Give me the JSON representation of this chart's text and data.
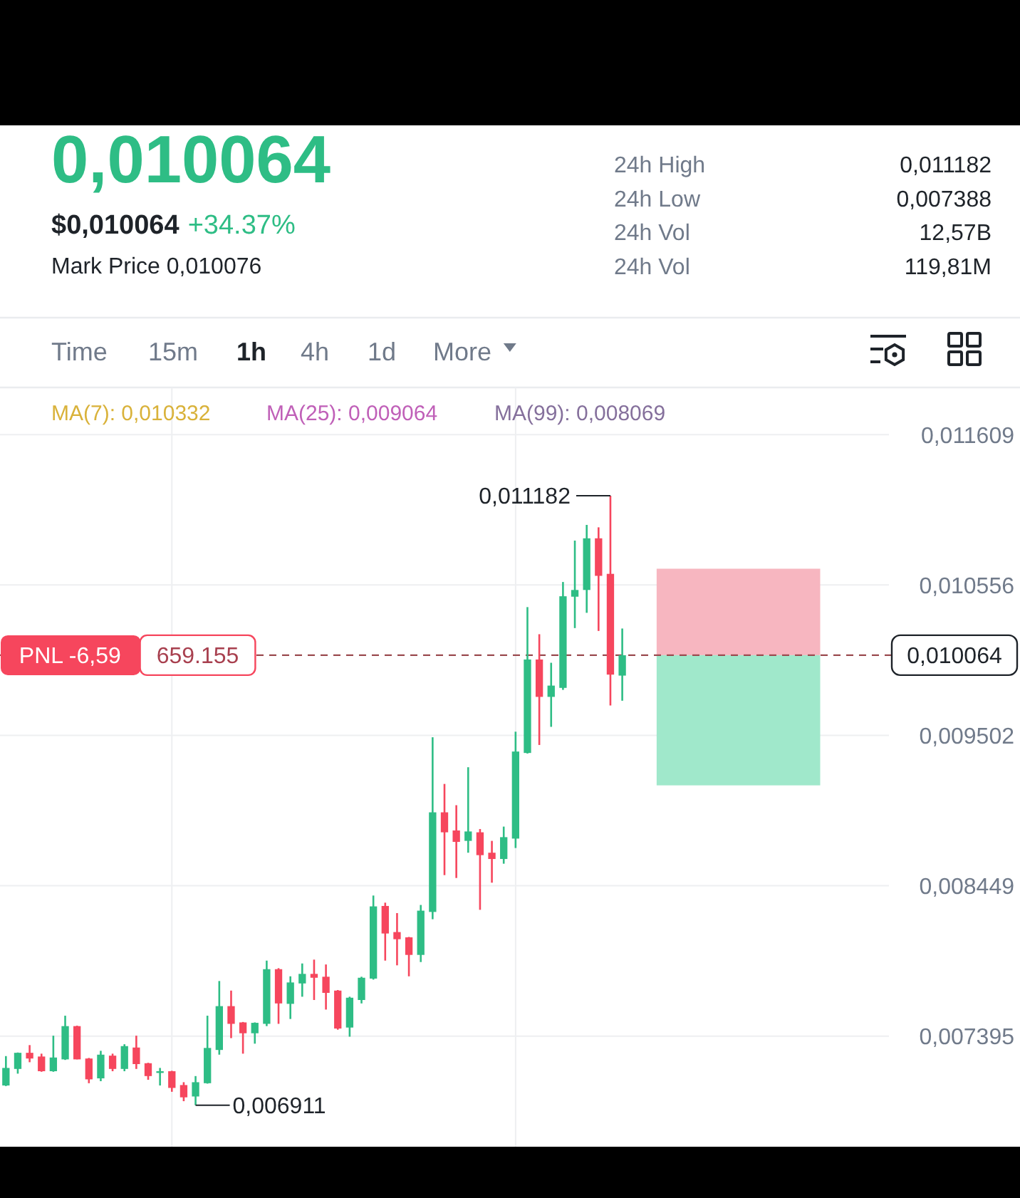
{
  "chart_data": {
    "type": "candlestick",
    "title": "0,010064",
    "subtitle": "$0,010064 +34.37%",
    "categories": [
      null,
      null,
      null,
      null,
      null,
      null,
      null,
      null,
      null,
      null,
      null,
      null,
      null,
      null,
      null,
      null,
      null,
      null,
      null,
      null,
      null,
      null,
      null,
      null,
      null,
      null,
      null,
      null,
      null,
      null,
      null,
      null,
      null,
      null,
      null,
      null,
      null,
      null,
      null,
      null,
      null,
      null,
      null,
      null,
      null,
      null,
      null,
      null,
      null,
      null,
      null,
      null,
      null,
      null,
      null,
      null,
      null,
      null,
      null,
      null,
      null,
      null,
      null,
      null,
      null,
      null,
      null,
      null,
      null,
      null,
      null,
      null,
      null,
      null,
      null
    ],
    "ohlc": [
      [
        0.007049,
        0.007255,
        0.007045,
        0.007172
      ],
      [
        0.007165,
        0.00728,
        0.007132,
        0.007278
      ],
      [
        0.007278,
        0.007332,
        0.007212,
        0.007238
      ],
      [
        0.007252,
        0.007272,
        0.007145,
        0.007149
      ],
      [
        0.007149,
        0.007398,
        0.007145,
        0.007245
      ],
      [
        0.007232,
        0.007538,
        0.007228,
        0.007465
      ],
      [
        0.007465,
        0.007468,
        0.007232,
        0.007232
      ],
      [
        0.007238,
        0.007242,
        0.007065,
        0.007092
      ],
      [
        0.007099,
        0.007292,
        0.007079,
        0.007265
      ],
      [
        0.007258,
        0.007272,
        0.007149,
        0.007165
      ],
      [
        0.007165,
        0.007338,
        0.007149,
        0.007325
      ],
      [
        0.007315,
        0.007398,
        0.007165,
        0.007199
      ],
      [
        0.007205,
        0.007208,
        0.007089,
        0.007115
      ],
      [
        0.007139,
        0.007172,
        0.007049,
        0.007149
      ],
      [
        0.007149,
        0.007152,
        0.007005,
        0.007032
      ],
      [
        0.007052,
        0.007072,
        0.006939,
        0.006966
      ],
      [
        0.006972,
        0.007115,
        0.006911,
        0.007072
      ],
      [
        0.007065,
        0.007538,
        0.007062,
        0.007312
      ],
      [
        0.007298,
        0.007781,
        0.007265,
        0.007605
      ],
      [
        0.007605,
        0.007714,
        0.007381,
        0.007481
      ],
      [
        0.007491,
        0.007494,
        0.007272,
        0.007415
      ],
      [
        0.007415,
        0.007491,
        0.007342,
        0.007488
      ],
      [
        0.007481,
        0.007924,
        0.007465,
        0.007864
      ],
      [
        0.007864,
        0.007871,
        0.007481,
        0.007624
      ],
      [
        0.007621,
        0.007814,
        0.007515,
        0.007771
      ],
      [
        0.007764,
        0.007904,
        0.007671,
        0.007831
      ],
      [
        0.007831,
        0.007931,
        0.007648,
        0.007804
      ],
      [
        0.007811,
        0.007897,
        0.007581,
        0.007698
      ],
      [
        0.007714,
        0.007718,
        0.00744,
        0.007448
      ],
      [
        0.007455,
        0.007671,
        0.007391,
        0.007664
      ],
      [
        0.007648,
        0.007811,
        0.007624,
        0.007804
      ],
      [
        0.007798,
        0.00838,
        0.007791,
        0.008304
      ],
      [
        0.008307,
        0.00833,
        0.007924,
        0.008114
      ],
      [
        0.008124,
        0.008257,
        0.007891,
        0.008074
      ],
      [
        0.008087,
        0.00809,
        0.007814,
        0.007964
      ],
      [
        0.007964,
        0.008314,
        0.007914,
        0.008274
      ],
      [
        0.008265,
        0.009489,
        0.008214,
        0.008963
      ],
      [
        0.008963,
        0.009162,
        0.008523,
        0.008823
      ],
      [
        0.008836,
        0.009013,
        0.008503,
        0.008756
      ],
      [
        0.008763,
        0.009279,
        0.00868,
        0.008829
      ],
      [
        0.008823,
        0.008846,
        0.00828,
        0.008663
      ],
      [
        0.00868,
        0.008763,
        0.00847,
        0.008636
      ],
      [
        0.008636,
        0.008863,
        0.008603,
        0.008789
      ],
      [
        0.008779,
        0.009528,
        0.008713,
        0.009389
      ],
      [
        0.009379,
        0.010401,
        0.009375,
        0.010034
      ],
      [
        0.010034,
        0.010211,
        0.009435,
        0.009772
      ],
      [
        0.009772,
        0.010011,
        0.009562,
        0.009851
      ],
      [
        0.009835,
        0.010577,
        0.009821,
        0.010477
      ],
      [
        0.010474,
        0.010867,
        0.010254,
        0.010521
      ],
      [
        0.010521,
        0.010977,
        0.010361,
        0.010883
      ],
      [
        0.010883,
        0.01096,
        0.010234,
        0.01062
      ],
      [
        0.010634,
        0.011182,
        0.009712,
        0.009928
      ],
      [
        0.009921,
        0.010251,
        0.009745,
        0.010064
      ],
      null,
      null,
      null,
      null,
      null,
      null,
      null,
      null,
      null,
      null,
      null,
      null,
      null,
      null,
      null,
      null,
      null,
      null,
      null,
      null,
      null,
      null
    ],
    "colors": [
      "#2ebd85",
      "#2ebd85",
      "#f6465d",
      "#f6465d",
      "#2ebd85",
      "#2ebd85",
      "#f6465d",
      "#f6465d",
      "#2ebd85",
      "#f6465d",
      "#2ebd85",
      "#f6465d",
      "#f6465d",
      "#2ebd85",
      "#f6465d",
      "#f6465d",
      "#2ebd85",
      "#2ebd85",
      "#2ebd85",
      "#f6465d",
      "#f6465d",
      "#2ebd85",
      "#2ebd85",
      "#f6465d",
      "#2ebd85",
      "#2ebd85",
      "#f6465d",
      "#f6465d",
      "#f6465d",
      "#2ebd85",
      "#2ebd85",
      "#2ebd85",
      "#f6465d",
      "#f6465d",
      "#f6465d",
      "#2ebd85",
      "#2ebd85",
      "#f6465d",
      "#f6465d",
      "#2ebd85",
      "#f6465d",
      "#f6465d",
      "#2ebd85",
      "#2ebd85",
      "#2ebd85",
      "#f6465d",
      "#2ebd85",
      "#2ebd85",
      "#2ebd85",
      "#2ebd85",
      "#f6465d",
      "#f6465d",
      "#2ebd85",
      null,
      null,
      null,
      null,
      null,
      null,
      null,
      null,
      null,
      null,
      null,
      null,
      null,
      null,
      null,
      null,
      null,
      null,
      null,
      null,
      null,
      null
    ],
    "ylim": [
      0.00662,
      0.01194
    ],
    "yticks": [
      {
        "value": 0.007395,
        "label": "0,007395"
      },
      {
        "value": 0.008449,
        "label": "0,008449"
      },
      {
        "value": 0.009502,
        "label": "0,009502"
      },
      {
        "value": 0.010556,
        "label": "0,010556"
      },
      {
        "value": 0.011609,
        "label": "0,011609"
      }
    ],
    "tick_labels": "y",
    "grid": true,
    "ref_lines": [
      {
        "axis": "y",
        "value": 0.010064,
        "label": "0,010064",
        "color": "#9b4b50",
        "line_style": "dashed"
      }
    ],
    "bands": [
      {
        "axis": "y",
        "from": 0.010064,
        "to": 0.01067,
        "color": "#f7b6c0"
      },
      {
        "axis": "y",
        "from": 0.009152,
        "to": 0.010064,
        "color": "#a0e8cb"
      }
    ],
    "annotations": [
      "Mark Price 0,010076",
      "24h High 0,011182",
      "24h Low 0,007388",
      "24h Vol 12,57B",
      "24h Vol 119,81M",
      "Time",
      "15m",
      "1h",
      "4h",
      "1d",
      "More",
      "MA(7): 0,010332",
      "MA(25): 0,009064",
      "MA(99): 0,008069",
      "0,011182",
      "0,006911",
      {
        "text": "PNL -6,59",
        "y": 0.010064
      },
      {
        "text": "659.155",
        "y": 0.010064
      }
    ]
  }
}
